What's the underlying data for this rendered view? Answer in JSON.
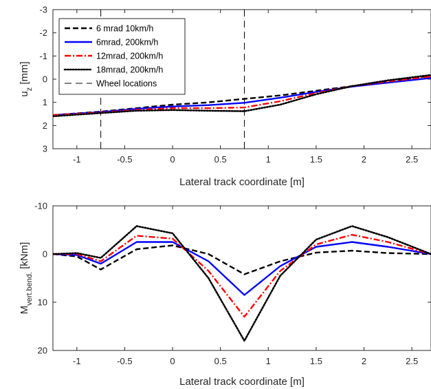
{
  "chart_data": [
    {
      "type": "line",
      "xlabel": "Lateral track coordinate [m]",
      "ylabel_main": "u",
      "ylabel_sub": "z",
      "ylabel_tail": " [mm]",
      "xlim": [
        -1.25,
        2.7
      ],
      "ylim": [
        -3,
        3
      ],
      "y_reversed": true,
      "xticks": [
        -1,
        -0.5,
        0,
        0.5,
        1,
        1.5,
        2,
        2.5
      ],
      "xtick_labels": [
        "-1",
        "-0.5",
        "0",
        "0.5",
        "1",
        "1.5",
        "2",
        "2.5"
      ],
      "yticks": [
        -3,
        -2,
        -1,
        0,
        1,
        2,
        3
      ],
      "ytick_labels": [
        "-3",
        "-2",
        "-1",
        "0",
        "1",
        "2",
        "3"
      ],
      "legend_position": "top-left",
      "series": [
        {
          "name": "6 mrad 10km/h",
          "color": "#000000",
          "style": "dashed",
          "x": [
            -1.25,
            -0.75,
            -0.375,
            0,
            0.375,
            0.75,
            1.125,
            1.5,
            1.875,
            2.25,
            2.7
          ],
          "y": [
            1.55,
            1.4,
            1.25,
            1.1,
            1.0,
            0.85,
            0.7,
            0.5,
            0.3,
            0.1,
            -0.15
          ]
        },
        {
          "name": "6mrad, 200km/h",
          "color": "#0000ff",
          "style": "solid",
          "x": [
            -1.25,
            -0.75,
            -0.375,
            0,
            0.375,
            0.75,
            1.125,
            1.5,
            1.875,
            2.25,
            2.7
          ],
          "y": [
            1.55,
            1.42,
            1.28,
            1.18,
            1.12,
            1.02,
            0.8,
            0.55,
            0.32,
            0.15,
            -0.05
          ]
        },
        {
          "name": "12mrad, 200km/h",
          "color": "#ff0000",
          "style": "dashdot",
          "x": [
            -1.25,
            -0.75,
            -0.375,
            0,
            0.375,
            0.75,
            1.125,
            1.5,
            1.875,
            2.25,
            2.7
          ],
          "y": [
            1.55,
            1.44,
            1.32,
            1.25,
            1.25,
            1.22,
            0.95,
            0.6,
            0.3,
            0.1,
            -0.12
          ]
        },
        {
          "name": "18mrad, 200km/h",
          "color": "#000000",
          "style": "dotted",
          "x": [
            -1.25,
            -0.75,
            -0.375,
            0,
            0.375,
            0.75,
            1.125,
            1.5,
            1.875,
            2.25,
            2.7
          ],
          "y": [
            1.6,
            1.46,
            1.36,
            1.33,
            1.36,
            1.38,
            1.1,
            0.65,
            0.3,
            0.05,
            -0.18
          ]
        }
      ],
      "vlines": {
        "name": "Wheel locations",
        "color": "#000000",
        "style": "longdash",
        "x": [
          -0.75,
          0.75
        ]
      }
    },
    {
      "type": "line",
      "xlabel": "Lateral track coordinate [m]",
      "ylabel_main": "M",
      "ylabel_sub": "vert.bend.",
      "ylabel_tail": " [kNm]",
      "xlim": [
        -1.25,
        2.7
      ],
      "ylim": [
        -10,
        20
      ],
      "y_reversed": true,
      "xticks": [
        -1,
        -0.5,
        0,
        0.5,
        1,
        1.5,
        2,
        2.5
      ],
      "xtick_labels": [
        "-1",
        "-0.5",
        "0",
        "0.5",
        "1",
        "1.5",
        "2",
        "2.5"
      ],
      "yticks": [
        -10,
        0,
        10,
        20
      ],
      "ytick_labels": [
        "-10",
        "0",
        "10",
        "20"
      ],
      "series": [
        {
          "name": "6 mrad 10km/h",
          "color": "#000000",
          "style": "dashed",
          "x": [
            -1.25,
            -1.0,
            -0.75,
            -0.375,
            0,
            0.375,
            0.75,
            1.125,
            1.5,
            1.875,
            2.25,
            2.7
          ],
          "y": [
            0,
            0.5,
            3.2,
            -1.0,
            -1.8,
            0.0,
            4.2,
            1.5,
            -0.3,
            -0.7,
            -0.2,
            0
          ]
        },
        {
          "name": "6mrad, 200km/h",
          "color": "#0000ff",
          "style": "solid",
          "x": [
            -1.25,
            -1.0,
            -0.75,
            -0.375,
            0,
            0.375,
            0.75,
            1.125,
            1.5,
            1.875,
            2.25,
            2.7
          ],
          "y": [
            0,
            0.2,
            2.0,
            -2.5,
            -2.5,
            1.5,
            8.5,
            2.5,
            -1.5,
            -2.5,
            -1.5,
            0
          ]
        },
        {
          "name": "12mrad, 200km/h",
          "color": "#ff0000",
          "style": "dashdot",
          "x": [
            -1.25,
            -1.0,
            -0.75,
            -0.375,
            0,
            0.375,
            0.75,
            1.125,
            1.5,
            1.875,
            2.25,
            2.7
          ],
          "y": [
            0,
            0.0,
            1.5,
            -3.8,
            -3.2,
            3.5,
            13.0,
            3.5,
            -2.0,
            -4.0,
            -2.5,
            0
          ]
        },
        {
          "name": "18mrad, 200km/h",
          "color": "#000000",
          "style": "dotted",
          "x": [
            -1.25,
            -1.0,
            -0.75,
            -0.375,
            0,
            0.375,
            0.75,
            1.125,
            1.5,
            1.875,
            2.25,
            2.7
          ],
          "y": [
            0,
            -0.2,
            0.8,
            -5.8,
            -4.3,
            5.0,
            18.0,
            4.5,
            -3.0,
            -5.8,
            -3.5,
            0
          ]
        }
      ]
    }
  ]
}
